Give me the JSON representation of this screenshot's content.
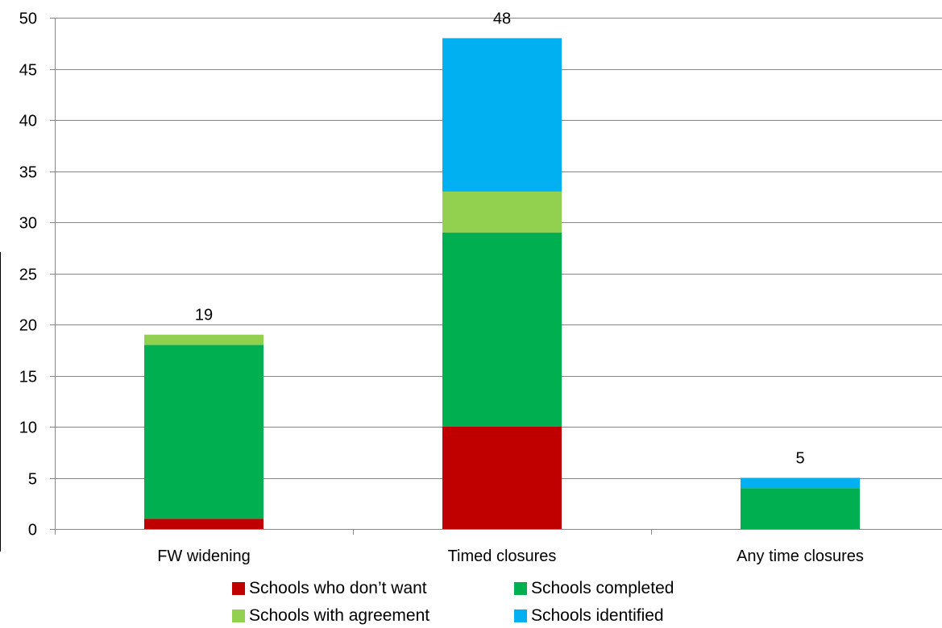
{
  "chart_data": {
    "type": "bar",
    "stacked": true,
    "categories": [
      "FW widening",
      "Timed closures",
      "Any time closures"
    ],
    "series": [
      {
        "name": "Schools who don’t want",
        "values": [
          1,
          10,
          0
        ],
        "color": "#C00000"
      },
      {
        "name": "Schools completed",
        "values": [
          17,
          19,
          4
        ],
        "color": "#00B050"
      },
      {
        "name": "Schools with agreement",
        "values": [
          1,
          4,
          0
        ],
        "color": "#92D050"
      },
      {
        "name": "Schools identified",
        "values": [
          0,
          15,
          1
        ],
        "color": "#00B0F0"
      }
    ],
    "totals": [
      19,
      48,
      5
    ],
    "total_labels": [
      "19",
      "48",
      "5"
    ],
    "ylim": [
      0,
      50
    ],
    "yticks": [
      0,
      5,
      10,
      15,
      20,
      25,
      30,
      35,
      40,
      45,
      50
    ],
    "grid": true,
    "gridline_color": "#868686",
    "legend_position": "bottom",
    "title": "",
    "xlabel": "",
    "ylabel": ""
  }
}
